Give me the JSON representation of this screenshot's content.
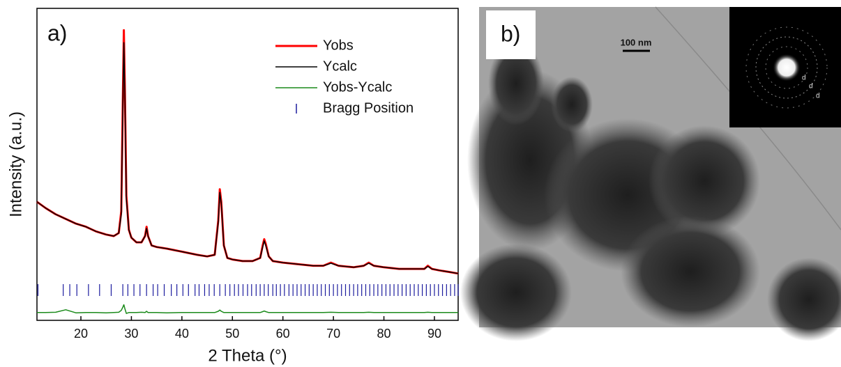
{
  "chart_data": {
    "type": "line",
    "panel_label": "a)",
    "x_label": "2 Theta (°)",
    "y_label": "Intensity (a.u.)",
    "xlim": [
      11.3,
      94.7
    ],
    "ylim": [
      0,
      100
    ],
    "xticks": [
      20,
      30,
      40,
      50,
      60,
      70,
      80,
      90
    ],
    "x": [
      11.3,
      13,
      15,
      17,
      19,
      21,
      23,
      25,
      26.5,
      27.5,
      28,
      28.3,
      28.5,
      28.7,
      29,
      29.5,
      30,
      31,
      32,
      32.7,
      33,
      33.3,
      34,
      35,
      37,
      40,
      43,
      45,
      46.5,
      47.2,
      47.5,
      47.8,
      48.3,
      49,
      50,
      52,
      54,
      55.5,
      56,
      56.3,
      56.6,
      57.2,
      58,
      60,
      63,
      66,
      68,
      69.5,
      71,
      74,
      76,
      77,
      78,
      80,
      83,
      86,
      88,
      88.7,
      89.5,
      91,
      93,
      94.7
    ],
    "series": [
      {
        "name": "Yobs",
        "color": "#ff0000",
        "values": [
          38,
          36,
          34,
          32.5,
          31,
          30,
          28.5,
          27.5,
          27,
          28,
          35,
          70,
          93,
          75,
          40,
          29,
          26.5,
          25,
          25,
          27,
          30,
          27,
          24,
          23.5,
          23,
          22,
          21,
          20.5,
          21,
          32,
          42,
          38,
          24,
          20,
          19.5,
          19,
          19,
          20,
          24,
          26,
          24.5,
          20.5,
          19,
          18.5,
          18,
          17.5,
          17.5,
          18.5,
          17.5,
          17,
          17.5,
          18.5,
          17.5,
          17,
          16.5,
          16.5,
          16.5,
          17.5,
          16.5,
          16,
          15.5,
          15
        ]
      },
      {
        "name": "Ycalc",
        "color": "#000000",
        "values": [
          38,
          36,
          34,
          32.5,
          31,
          30,
          28.5,
          27.5,
          27,
          28,
          34,
          68,
          89,
          73,
          39,
          29,
          26.5,
          25,
          25,
          27,
          29.5,
          27,
          24,
          23.5,
          23,
          22,
          21,
          20.5,
          21,
          31.5,
          41,
          37.5,
          24,
          20,
          19.5,
          19,
          19,
          20,
          23.5,
          25.5,
          24,
          20.5,
          19,
          18.5,
          18,
          17.5,
          17.5,
          18.3,
          17.5,
          17,
          17.5,
          18.3,
          17.5,
          17,
          16.5,
          16.5,
          16.5,
          17.3,
          16.5,
          16,
          15.5,
          15
        ]
      },
      {
        "name": "Yobs-Ycalc",
        "color": "#1a8a1a",
        "values": [
          2.5,
          2.5,
          2.6,
          3.4,
          2.4,
          2.5,
          2.5,
          2.4,
          2.5,
          2.6,
          3.2,
          4.2,
          5,
          3.8,
          2.2,
          2.5,
          2.5,
          2.5,
          2.6,
          2.5,
          2.9,
          2.5,
          2.5,
          2.5,
          2.4,
          2.5,
          2.5,
          2.5,
          2.5,
          2.9,
          3.3,
          2.9,
          2.5,
          2.5,
          2.5,
          2.5,
          2.5,
          2.5,
          2.8,
          3,
          2.8,
          2.5,
          2.5,
          2.5,
          2.5,
          2.5,
          2.5,
          2.6,
          2.5,
          2.5,
          2.5,
          2.6,
          2.5,
          2.5,
          2.5,
          2.5,
          2.5,
          2.6,
          2.5,
          2.5,
          2.5,
          2.5
        ]
      },
      {
        "name": "Bragg Position",
        "color": "#1c1c9e",
        "x": [
          11.5,
          16.5,
          17.8,
          19.2,
          21.5,
          23.7,
          26.0,
          28.3,
          29.3,
          30.5,
          31.7,
          33.0,
          34.3,
          35.2,
          36.5,
          37.9,
          39.0,
          40.2,
          41.3,
          42.6,
          43.4,
          44.5,
          45.4,
          46.4,
          47.5,
          48.6,
          49.5,
          50.4,
          51.2,
          52.1,
          53.0,
          53.8,
          54.7,
          55.5,
          56.3,
          57.1,
          58.0,
          58.7,
          59.5,
          60.3,
          61.2,
          62.0,
          62.8,
          63.6,
          64.4,
          65.2,
          66.0,
          66.8,
          67.6,
          68.4,
          69.2,
          70.0,
          70.8,
          71.6,
          72.4,
          73.2,
          74.0,
          74.8,
          75.6,
          76.4,
          77.2,
          78.0,
          78.8,
          79.6,
          80.4,
          81.2,
          82.0,
          82.8,
          83.6,
          84.4,
          85.2,
          86.0,
          86.8,
          87.6,
          88.4,
          89.2,
          90.0,
          90.8,
          91.6,
          92.4,
          93.2,
          94.0,
          94.7
        ]
      }
    ]
  },
  "image": {
    "panel_label": "b)",
    "scale_bar": "100 nm",
    "diffraction_labels": [
      "d",
      "d",
      "d"
    ]
  }
}
